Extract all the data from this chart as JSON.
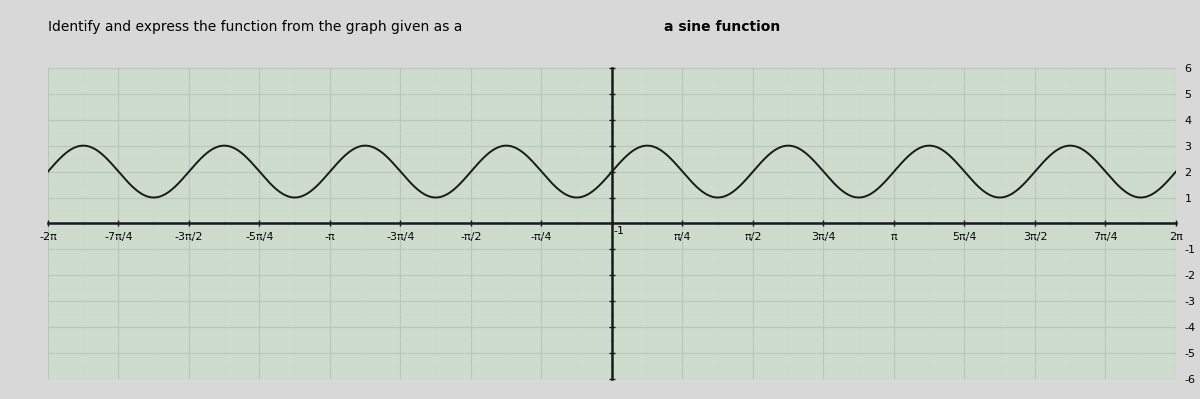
{
  "title": "Identify and express the function from the graph given as a sine function",
  "amplitude": 1,
  "vertical_shift": 2,
  "frequency_multiplier": 4,
  "x_min": -6.283185307179586,
  "x_max": 6.283185307179586,
  "y_min": -6,
  "y_max": 6,
  "x_ticks": [
    -6.283185307179586,
    -5.497787143782138,
    -4.71238898038469,
    -3.9269908169872414,
    -3.141592653589793,
    -2.356194490192345,
    -1.5707963267948966,
    -0.7853981633974483,
    0.7853981633974483,
    1.5707963267948966,
    2.356194490192345,
    3.141592653589793,
    3.9269908169872414,
    4.71238898038469,
    5.497787143782138,
    6.283185307179586
  ],
  "x_tick_labels": [
    "-2π",
    "-7π/4",
    "-3π/2",
    "-5π/4",
    "-π",
    "-3π/4",
    "-π/2",
    "-π/4",
    "π/4",
    "π/2",
    "3π/4",
    "π",
    "5π/4",
    "3π/2",
    "7π/4",
    "2π"
  ],
  "y_ticks": [
    -6,
    -5,
    -4,
    -3,
    -2,
    -1,
    1,
    2,
    3,
    4,
    5,
    6
  ],
  "y_tick_labels": [
    "-6",
    "-5",
    "-4",
    "-3",
    "-2",
    "-1",
    "1",
    "2",
    "3",
    "4",
    "5",
    "6"
  ],
  "curve_color": "#1a1a1a",
  "grid_major_color": "#b8c8b8",
  "grid_minor_color": "#ccdacc",
  "axis_color": "#1a1a1a",
  "background_color": "#cddccd",
  "figure_background": "#d8d8d8",
  "font_size_title": 10,
  "font_size_ticks": 8,
  "line_width": 1.4
}
